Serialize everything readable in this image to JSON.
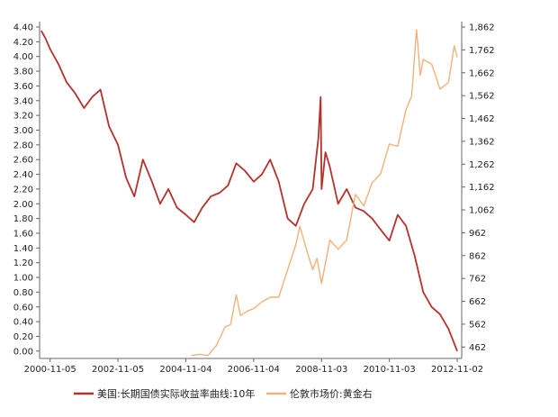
{
  "chart_data": {
    "type": "line",
    "title": "",
    "xlabel": "",
    "ylabel_left": "",
    "ylabel_right": "",
    "grid": false,
    "legend_position": "bottom",
    "x_tick_labels": [
      "2000-11-05",
      "2002-11-05",
      "2004-11-04",
      "2006-11-04",
      "2008-11-03",
      "2010-11-03",
      "2012-11-02"
    ],
    "y_left_ticks": [
      "0.00",
      "0.20",
      "0.40",
      "0.60",
      "0.80",
      "1.00",
      "1.20",
      "1.40",
      "1.60",
      "1.80",
      "2.00",
      "2.20",
      "2.40",
      "2.60",
      "2.80",
      "3.00",
      "3.20",
      "3.40",
      "3.60",
      "3.80",
      "4.00",
      "4.20",
      "4.40"
    ],
    "y_right_ticks": [
      "462",
      "562",
      "662",
      "762",
      "862",
      "962",
      "1,062",
      "1,162",
      "1,262",
      "1,362",
      "1,462",
      "1,562",
      "1,662",
      "1,762",
      "1,862"
    ],
    "ylim_left": [
      -0.1,
      4.4
    ],
    "ylim_right": [
      412,
      1862
    ],
    "series": [
      {
        "name": "美国:长期国债实际收益率曲线:10年",
        "axis": "left",
        "color": "#b5312c",
        "x": [
          "2000-08-01",
          "2000-09-15",
          "2000-11-05",
          "2001-02-01",
          "2001-05-01",
          "2001-08-01",
          "2001-11-05",
          "2002-02-01",
          "2002-05-01",
          "2002-08-01",
          "2002-11-05",
          "2003-02-01",
          "2003-05-01",
          "2003-08-01",
          "2003-11-05",
          "2004-02-01",
          "2004-05-01",
          "2004-08-01",
          "2004-11-04",
          "2005-02-01",
          "2005-05-01",
          "2005-08-01",
          "2005-11-04",
          "2006-02-01",
          "2006-05-01",
          "2006-08-01",
          "2006-11-04",
          "2007-02-01",
          "2007-05-01",
          "2007-08-01",
          "2007-11-04",
          "2008-02-01",
          "2008-05-01",
          "2008-08-01",
          "2008-10-01",
          "2008-10-25",
          "2008-11-03",
          "2008-12-15",
          "2009-02-01",
          "2009-05-01",
          "2009-08-01",
          "2009-11-03",
          "2010-02-01",
          "2010-05-01",
          "2010-08-01",
          "2010-11-03",
          "2011-02-01",
          "2011-05-01",
          "2011-08-01",
          "2011-11-03",
          "2012-02-01",
          "2012-05-01",
          "2012-08-01",
          "2012-11-02"
        ],
        "y": [
          4.35,
          4.25,
          4.1,
          3.9,
          3.65,
          3.5,
          3.3,
          3.45,
          3.55,
          3.05,
          2.8,
          2.35,
          2.1,
          2.6,
          2.3,
          2.0,
          2.2,
          1.95,
          1.85,
          1.75,
          1.95,
          2.1,
          2.15,
          2.25,
          2.55,
          2.45,
          2.3,
          2.4,
          2.6,
          2.3,
          1.8,
          1.7,
          2.0,
          2.2,
          2.9,
          3.45,
          2.2,
          2.7,
          2.5,
          2.0,
          2.2,
          1.95,
          1.9,
          1.8,
          1.65,
          1.5,
          1.85,
          1.7,
          1.3,
          0.8,
          0.6,
          0.5,
          0.3,
          0.0
        ]
      },
      {
        "name": "伦敦市场价:黄金右",
        "axis": "right",
        "color": "#f0b27a",
        "x": [
          "2005-01-01",
          "2005-04-01",
          "2005-07-01",
          "2005-10-01",
          "2006-01-01",
          "2006-03-01",
          "2006-05-01",
          "2006-06-15",
          "2006-09-01",
          "2006-11-04",
          "2007-02-01",
          "2007-05-01",
          "2007-08-01",
          "2007-11-04",
          "2008-02-01",
          "2008-03-15",
          "2008-06-01",
          "2008-08-01",
          "2008-09-15",
          "2008-11-03",
          "2009-02-01",
          "2009-05-01",
          "2009-08-01",
          "2009-11-03",
          "2010-02-01",
          "2010-05-01",
          "2010-08-01",
          "2010-11-03",
          "2011-02-01",
          "2011-05-01",
          "2011-07-01",
          "2011-08-22",
          "2011-09-06",
          "2011-10-01",
          "2011-11-03",
          "2012-02-01",
          "2012-05-01",
          "2012-08-01",
          "2012-10-01",
          "2012-11-02"
        ],
        "y": [
          425,
          430,
          425,
          470,
          550,
          560,
          690,
          600,
          620,
          630,
          660,
          680,
          680,
          800,
          910,
          990,
          880,
          800,
          850,
          740,
          930,
          890,
          930,
          1130,
          1080,
          1180,
          1220,
          1350,
          1340,
          1500,
          1560,
          1850,
          1780,
          1650,
          1720,
          1700,
          1590,
          1620,
          1780,
          1730
        ]
      }
    ]
  }
}
